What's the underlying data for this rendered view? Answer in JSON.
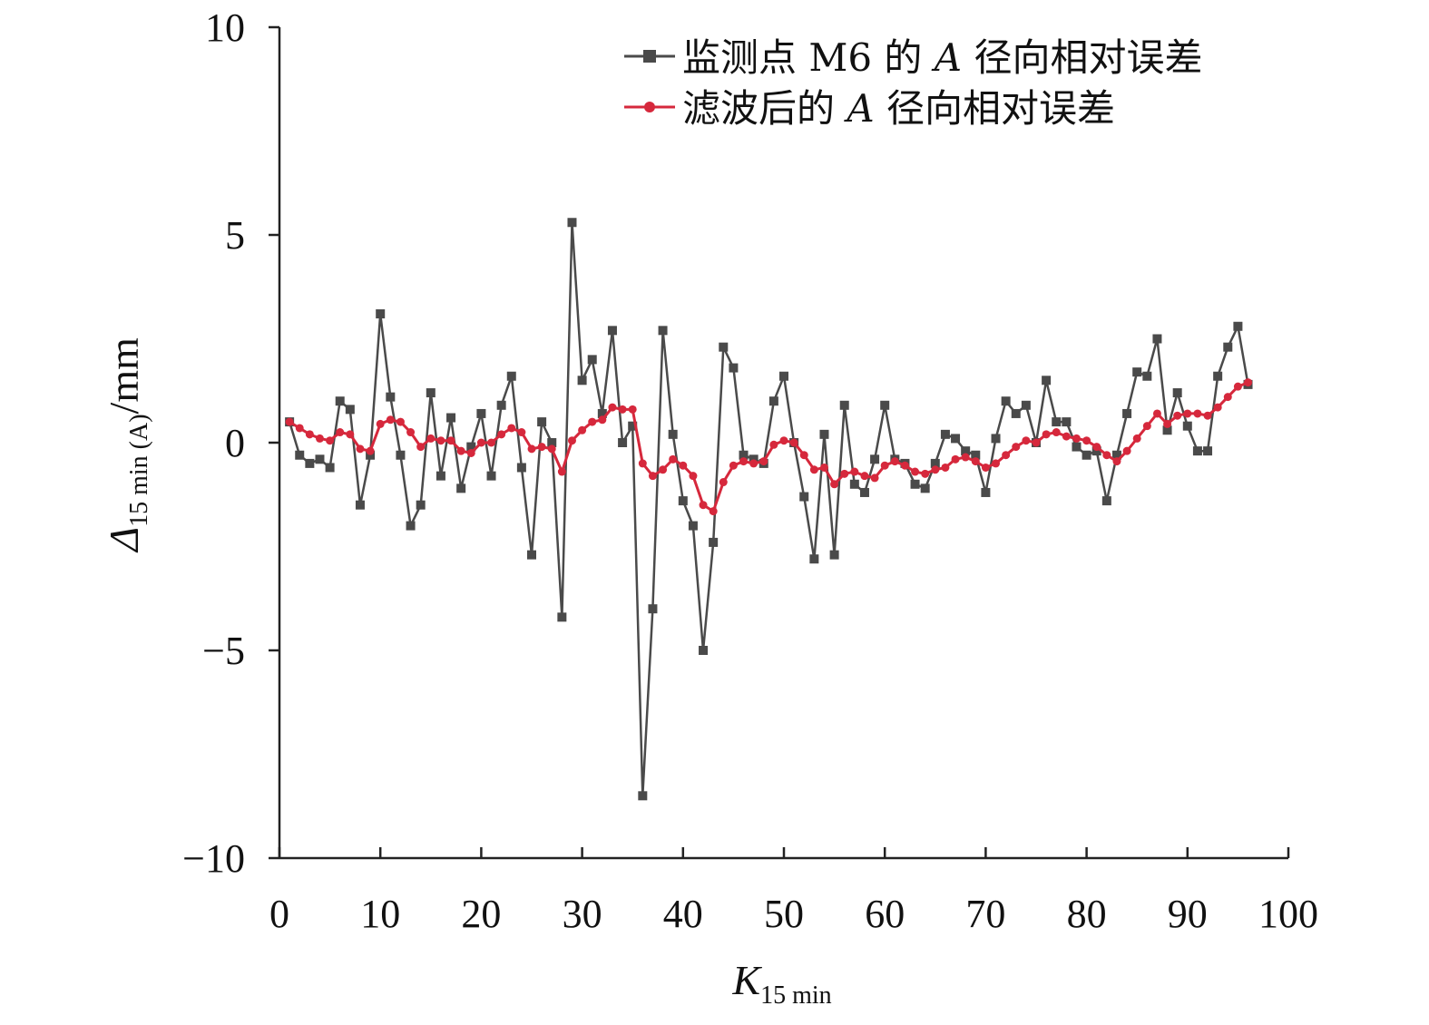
{
  "chart_data": {
    "type": "line",
    "xlim": [
      0,
      100
    ],
    "ylim": [
      -10,
      10
    ],
    "x_ticks": [
      0,
      10,
      20,
      30,
      40,
      50,
      60,
      70,
      80,
      90,
      100
    ],
    "y_ticks": [
      -10,
      -5,
      0,
      5,
      10
    ],
    "x_tick_labels": [
      "0",
      "10",
      "20",
      "30",
      "40",
      "50",
      "60",
      "70",
      "80",
      "90",
      "100"
    ],
    "y_tick_labels": [
      "−10",
      "−5",
      "0",
      "5",
      "10"
    ],
    "xlabel": {
      "main": "K",
      "sub": "15 min"
    },
    "ylabel": {
      "main": "Δ",
      "sub": "15 min (A)",
      "suffix": "/mm"
    },
    "grid": false,
    "legend_position": "top-right",
    "series": [
      {
        "name": "监测点 M6 的 A 径向相对误差",
        "legend_parts": [
          "监测点 M6 的 ",
          "A",
          " 径向相对误差"
        ],
        "color": "#4a4a4a",
        "marker": "square",
        "x": [
          1,
          2,
          3,
          4,
          5,
          6,
          7,
          8,
          9,
          10,
          11,
          12,
          13,
          14,
          15,
          16,
          17,
          18,
          19,
          20,
          21,
          22,
          23,
          24,
          25,
          26,
          27,
          28,
          29,
          30,
          31,
          32,
          33,
          34,
          35,
          36,
          37,
          38,
          39,
          40,
          41,
          42,
          43,
          44,
          45,
          46,
          47,
          48,
          49,
          50,
          51,
          52,
          53,
          54,
          55,
          56,
          57,
          58,
          59,
          60,
          61,
          62,
          63,
          64,
          65,
          66,
          67,
          68,
          69,
          70,
          71,
          72,
          73,
          74,
          75,
          76,
          77,
          78,
          79,
          80,
          81,
          82,
          83,
          84,
          85,
          86,
          87,
          88,
          89,
          90,
          91,
          92,
          93,
          94,
          95,
          96
        ],
        "y": [
          0.5,
          -0.3,
          -0.5,
          -0.4,
          -0.6,
          1.0,
          0.8,
          -1.5,
          -0.3,
          3.1,
          1.1,
          -0.3,
          -2.0,
          -1.5,
          1.2,
          -0.8,
          0.6,
          -1.1,
          -0.1,
          0.7,
          -0.8,
          0.9,
          1.6,
          -0.6,
          -2.7,
          0.5,
          0.0,
          -4.2,
          5.3,
          1.5,
          2.0,
          0.7,
          2.7,
          0.0,
          0.4,
          -8.5,
          -4.0,
          2.7,
          0.2,
          -1.4,
          -2.0,
          -5.0,
          -2.4,
          2.3,
          1.8,
          -0.3,
          -0.4,
          -0.5,
          1.0,
          1.6,
          0.0,
          -1.3,
          -2.8,
          0.2,
          -2.7,
          0.9,
          -1.0,
          -1.2,
          -0.4,
          0.9,
          -0.4,
          -0.5,
          -1.0,
          -1.1,
          -0.5,
          0.2,
          0.1,
          -0.2,
          -0.3,
          -1.2,
          0.1,
          1.0,
          0.7,
          0.9,
          0.0,
          1.5,
          0.5,
          0.5,
          -0.1,
          -0.3,
          -0.2,
          -1.4,
          -0.3,
          0.7,
          1.7,
          1.6,
          2.5,
          0.3,
          1.2,
          0.4,
          -0.2,
          -0.2,
          1.6,
          2.3,
          2.8,
          1.4
        ]
      },
      {
        "name": "滤波后的 A 径向相对误差",
        "legend_parts": [
          "滤波后的 ",
          "A",
          " 径向相对误差"
        ],
        "color": "#d6283c",
        "marker": "circle",
        "x": [
          1,
          2,
          3,
          4,
          5,
          6,
          7,
          8,
          9,
          10,
          11,
          12,
          13,
          14,
          15,
          16,
          17,
          18,
          19,
          20,
          21,
          22,
          23,
          24,
          25,
          26,
          27,
          28,
          29,
          30,
          31,
          32,
          33,
          34,
          35,
          36,
          37,
          38,
          39,
          40,
          41,
          42,
          43,
          44,
          45,
          46,
          47,
          48,
          49,
          50,
          51,
          52,
          53,
          54,
          55,
          56,
          57,
          58,
          59,
          60,
          61,
          62,
          63,
          64,
          65,
          66,
          67,
          68,
          69,
          70,
          71,
          72,
          73,
          74,
          75,
          76,
          77,
          78,
          79,
          80,
          81,
          82,
          83,
          84,
          85,
          86,
          87,
          88,
          89,
          90,
          91,
          92,
          93,
          94,
          95,
          96
        ],
        "y": [
          0.5,
          0.35,
          0.2,
          0.1,
          0.05,
          0.25,
          0.2,
          -0.15,
          -0.2,
          0.45,
          0.55,
          0.5,
          0.25,
          -0.1,
          0.1,
          0.05,
          0.05,
          -0.2,
          -0.25,
          0.0,
          0.0,
          0.2,
          0.35,
          0.25,
          -0.15,
          -0.1,
          -0.15,
          -0.7,
          0.05,
          0.3,
          0.5,
          0.55,
          0.85,
          0.8,
          0.8,
          -0.5,
          -0.8,
          -0.65,
          -0.4,
          -0.55,
          -0.8,
          -1.5,
          -1.65,
          -0.95,
          -0.55,
          -0.45,
          -0.5,
          -0.45,
          -0.05,
          0.05,
          0.0,
          -0.3,
          -0.65,
          -0.6,
          -1.0,
          -0.75,
          -0.7,
          -0.8,
          -0.85,
          -0.55,
          -0.45,
          -0.55,
          -0.7,
          -0.75,
          -0.65,
          -0.6,
          -0.4,
          -0.35,
          -0.45,
          -0.6,
          -0.5,
          -0.3,
          -0.1,
          0.05,
          0.0,
          0.2,
          0.25,
          0.15,
          0.1,
          0.05,
          -0.1,
          -0.3,
          -0.45,
          -0.2,
          0.1,
          0.4,
          0.7,
          0.45,
          0.65,
          0.7,
          0.7,
          0.65,
          0.85,
          1.1,
          1.35,
          1.45
        ]
      }
    ]
  }
}
